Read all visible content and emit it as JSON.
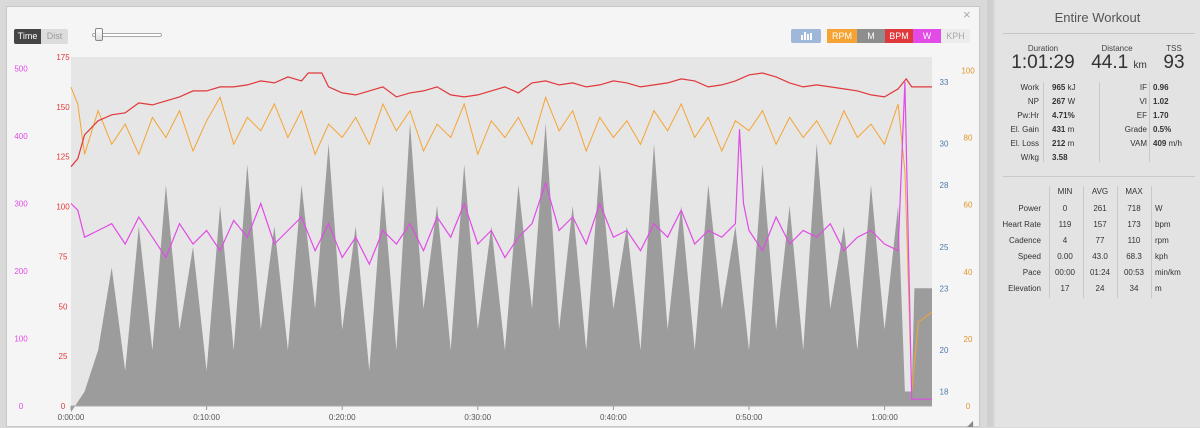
{
  "toolbar": {
    "time_label": "Time",
    "dist_label": "Dist",
    "close_label": "×",
    "series_buttons": [
      "RPM",
      "M",
      "BPM",
      "W",
      "KPH"
    ],
    "resize_glyph": "◢"
  },
  "colors": {
    "rpm": "#f5a433",
    "elevation": "#8e8e8e",
    "bpm": "#e0383b",
    "watts": "#e24be6",
    "kph_disabled": "#ececec",
    "speed_axis": "#4f79a7",
    "bars_button": "#9fb7d8"
  },
  "chart_data": {
    "type": "line",
    "x_ticks": [
      "0:00:00",
      "0:10:00",
      "0:20:00",
      "0:30:00",
      "0:40:00",
      "0:50:00",
      "1:00:00"
    ],
    "x_range_minutes": [
      0,
      63.5
    ],
    "axes": {
      "power": {
        "ticks": [
          "0",
          "100",
          "200",
          "300",
          "400",
          "500"
        ],
        "range": [
          0,
          517
        ]
      },
      "heart_rate": {
        "ticks": [
          "0",
          "25",
          "50",
          "75",
          "100",
          "125",
          "150",
          "175"
        ],
        "range": [
          0,
          175
        ]
      },
      "speed": {
        "ticks": [
          "18",
          "20",
          "23",
          "25",
          "28",
          "30",
          "33"
        ],
        "range": [
          17.3,
          34.2
        ]
      },
      "cadence": {
        "ticks": [
          "0",
          "20",
          "40",
          "60",
          "80",
          "100"
        ],
        "range": [
          0,
          104
        ]
      }
    },
    "series": [
      {
        "name": "BPM",
        "points": [
          [
            0,
            120
          ],
          [
            0.5,
            124
          ],
          [
            1,
            136
          ],
          [
            2,
            143
          ],
          [
            3,
            146
          ],
          [
            4,
            147
          ],
          [
            5,
            152
          ],
          [
            6,
            151
          ],
          [
            7,
            153
          ],
          [
            8,
            155
          ],
          [
            9,
            158
          ],
          [
            10,
            158
          ],
          [
            11,
            160
          ],
          [
            12,
            160
          ],
          [
            13,
            161
          ],
          [
            14,
            163
          ],
          [
            15,
            162
          ],
          [
            16,
            165
          ],
          [
            17,
            163
          ],
          [
            17.5,
            167
          ],
          [
            18.5,
            167
          ],
          [
            19,
            160
          ],
          [
            20,
            157
          ],
          [
            21,
            156
          ],
          [
            22,
            158
          ],
          [
            23,
            160
          ],
          [
            24,
            155
          ],
          [
            25,
            157
          ],
          [
            26,
            158
          ],
          [
            27,
            160
          ],
          [
            28,
            156
          ],
          [
            29,
            155
          ],
          [
            30,
            156
          ],
          [
            31,
            158
          ],
          [
            32,
            160
          ],
          [
            33,
            157
          ],
          [
            34,
            162
          ],
          [
            35,
            163
          ],
          [
            36,
            161
          ],
          [
            37,
            162
          ],
          [
            38,
            160
          ],
          [
            39,
            161
          ],
          [
            40,
            163
          ],
          [
            41,
            162
          ],
          [
            42,
            160
          ],
          [
            43,
            161
          ],
          [
            44,
            162
          ],
          [
            45,
            164
          ],
          [
            46,
            163
          ],
          [
            47,
            160
          ],
          [
            48,
            161
          ],
          [
            49,
            163
          ],
          [
            50,
            166
          ],
          [
            51,
            167
          ],
          [
            52,
            165
          ],
          [
            53,
            162
          ],
          [
            54,
            160
          ],
          [
            55,
            161
          ],
          [
            56,
            160
          ],
          [
            57,
            159
          ],
          [
            58,
            158
          ],
          [
            59,
            156
          ],
          [
            60,
            155
          ],
          [
            61,
            159
          ],
          [
            61.6,
            164
          ],
          [
            62,
            160
          ],
          [
            63.5,
            160
          ]
        ]
      },
      {
        "name": "W",
        "points": [
          [
            0,
            300
          ],
          [
            0.5,
            290
          ],
          [
            1,
            250
          ],
          [
            2,
            260
          ],
          [
            3,
            270
          ],
          [
            4,
            240
          ],
          [
            5,
            280
          ],
          [
            6,
            250
          ],
          [
            7,
            220
          ],
          [
            8,
            270
          ],
          [
            9,
            240
          ],
          [
            10,
            260
          ],
          [
            11,
            230
          ],
          [
            12,
            275
          ],
          [
            13,
            250
          ],
          [
            14,
            300
          ],
          [
            15,
            240
          ],
          [
            16,
            260
          ],
          [
            17,
            280
          ],
          [
            18,
            230
          ],
          [
            19,
            270
          ],
          [
            20,
            220
          ],
          [
            21,
            250
          ],
          [
            22,
            210
          ],
          [
            23,
            260
          ],
          [
            24,
            240
          ],
          [
            25,
            270
          ],
          [
            26,
            230
          ],
          [
            27,
            280
          ],
          [
            28,
            250
          ],
          [
            29,
            300
          ],
          [
            30,
            240
          ],
          [
            31,
            260
          ],
          [
            32,
            220
          ],
          [
            33,
            250
          ],
          [
            34,
            270
          ],
          [
            35,
            330
          ],
          [
            36,
            260
          ],
          [
            37,
            280
          ],
          [
            38,
            240
          ],
          [
            39,
            300
          ],
          [
            40,
            250
          ],
          [
            41,
            260
          ],
          [
            42,
            230
          ],
          [
            43,
            270
          ],
          [
            44,
            250
          ],
          [
            45,
            290
          ],
          [
            46,
            240
          ],
          [
            47,
            260
          ],
          [
            48,
            250
          ],
          [
            49,
            270
          ],
          [
            49.3,
            410
          ],
          [
            49.6,
            300
          ],
          [
            50,
            260
          ],
          [
            51,
            230
          ],
          [
            52,
            280
          ],
          [
            53,
            240
          ],
          [
            54,
            260
          ],
          [
            55,
            250
          ],
          [
            56,
            270
          ],
          [
            57,
            230
          ],
          [
            58,
            250
          ],
          [
            59,
            260
          ],
          [
            60,
            240
          ],
          [
            61,
            230
          ],
          [
            61.5,
            480
          ],
          [
            62,
            10
          ],
          [
            63.5,
            10
          ]
        ]
      },
      {
        "name": "RPM",
        "points": [
          [
            0,
            95
          ],
          [
            0.5,
            90
          ],
          [
            1,
            75
          ],
          [
            2,
            88
          ],
          [
            3,
            78
          ],
          [
            4,
            84
          ],
          [
            5,
            75
          ],
          [
            6,
            86
          ],
          [
            7,
            80
          ],
          [
            8,
            88
          ],
          [
            9,
            76
          ],
          [
            10,
            85
          ],
          [
            11,
            92
          ],
          [
            12,
            78
          ],
          [
            13,
            86
          ],
          [
            14,
            82
          ],
          [
            15,
            90
          ],
          [
            16,
            80
          ],
          [
            17,
            88
          ],
          [
            18,
            75
          ],
          [
            19,
            84
          ],
          [
            20,
            80
          ],
          [
            21,
            86
          ],
          [
            22,
            78
          ],
          [
            23,
            90
          ],
          [
            24,
            82
          ],
          [
            25,
            88
          ],
          [
            26,
            76
          ],
          [
            27,
            84
          ],
          [
            28,
            80
          ],
          [
            29,
            90
          ],
          [
            30,
            75
          ],
          [
            31,
            85
          ],
          [
            32,
            80
          ],
          [
            33,
            86
          ],
          [
            34,
            78
          ],
          [
            35,
            92
          ],
          [
            36,
            82
          ],
          [
            37,
            88
          ],
          [
            38,
            76
          ],
          [
            39,
            86
          ],
          [
            40,
            80
          ],
          [
            41,
            85
          ],
          [
            42,
            78
          ],
          [
            43,
            88
          ],
          [
            44,
            82
          ],
          [
            45,
            90
          ],
          [
            46,
            80
          ],
          [
            47,
            86
          ],
          [
            48,
            76
          ],
          [
            49,
            85
          ],
          [
            50,
            82
          ],
          [
            51,
            88
          ],
          [
            52,
            78
          ],
          [
            53,
            86
          ],
          [
            54,
            80
          ],
          [
            55,
            85
          ],
          [
            56,
            78
          ],
          [
            57,
            88
          ],
          [
            58,
            80
          ],
          [
            59,
            84
          ],
          [
            60,
            78
          ],
          [
            61,
            90
          ],
          [
            61.5,
            70
          ],
          [
            62,
            4
          ],
          [
            62.5,
            25
          ],
          [
            63.5,
            28
          ]
        ]
      },
      {
        "name": "M",
        "points": [
          [
            0,
            17
          ],
          [
            1,
            18
          ],
          [
            2,
            20
          ],
          [
            3,
            24
          ],
          [
            4,
            19
          ],
          [
            5,
            26
          ],
          [
            6,
            20
          ],
          [
            7,
            28
          ],
          [
            8,
            21
          ],
          [
            9,
            25
          ],
          [
            10,
            19
          ],
          [
            11,
            27
          ],
          [
            12,
            20
          ],
          [
            13,
            29
          ],
          [
            14,
            21
          ],
          [
            15,
            26
          ],
          [
            16,
            20
          ],
          [
            17,
            28
          ],
          [
            18,
            22
          ],
          [
            19,
            30
          ],
          [
            20,
            21
          ],
          [
            21,
            26
          ],
          [
            22,
            19
          ],
          [
            23,
            28
          ],
          [
            24,
            20
          ],
          [
            25,
            31
          ],
          [
            26,
            22
          ],
          [
            27,
            27
          ],
          [
            28,
            20
          ],
          [
            29,
            29
          ],
          [
            30,
            21
          ],
          [
            31,
            26
          ],
          [
            32,
            20
          ],
          [
            33,
            28
          ],
          [
            34,
            22
          ],
          [
            35,
            31
          ],
          [
            36,
            21
          ],
          [
            37,
            27
          ],
          [
            38,
            20
          ],
          [
            39,
            29
          ],
          [
            40,
            22
          ],
          [
            41,
            26
          ],
          [
            42,
            20
          ],
          [
            43,
            30
          ],
          [
            44,
            21
          ],
          [
            45,
            27
          ],
          [
            46,
            20
          ],
          [
            47,
            28
          ],
          [
            48,
            22
          ],
          [
            49,
            26
          ],
          [
            50,
            20
          ],
          [
            51,
            29
          ],
          [
            52,
            21
          ],
          [
            53,
            27
          ],
          [
            54,
            20
          ],
          [
            55,
            30
          ],
          [
            56,
            22
          ],
          [
            57,
            26
          ],
          [
            58,
            20
          ],
          [
            59,
            28
          ],
          [
            60,
            21
          ],
          [
            61,
            27
          ],
          [
            61.5,
            18
          ],
          [
            62,
            18
          ],
          [
            62.2,
            23
          ],
          [
            63.5,
            23
          ]
        ]
      }
    ]
  },
  "summary": {
    "title": "Entire Workout",
    "duration_label": "Duration",
    "duration": "1:01:29",
    "distance_label": "Distance",
    "distance": "44.1",
    "distance_unit": "km",
    "tss_label": "TSS",
    "tss": "93"
  },
  "metrics_left": [
    {
      "label": "Work",
      "value": "965",
      "unit": "kJ"
    },
    {
      "label": "NP",
      "value": "267",
      "unit": "W"
    },
    {
      "label": "Pw:Hr",
      "value": "4.71%",
      "unit": ""
    },
    {
      "label": "El. Gain",
      "value": "431",
      "unit": "m"
    },
    {
      "label": "El. Loss",
      "value": "212",
      "unit": "m"
    },
    {
      "label": "W/kg",
      "value": "3.58",
      "unit": ""
    }
  ],
  "metrics_right": [
    {
      "label": "IF",
      "value": "0.96",
      "unit": ""
    },
    {
      "label": "VI",
      "value": "1.02",
      "unit": ""
    },
    {
      "label": "EF",
      "value": "1.70",
      "unit": ""
    },
    {
      "label": "Grade",
      "value": "0.5%",
      "unit": ""
    },
    {
      "label": "VAM",
      "value": "409",
      "unit": "m/h"
    }
  ],
  "stats_table": {
    "headers": [
      "MIN",
      "AVG",
      "MAX"
    ],
    "rows": [
      {
        "label": "Power",
        "min": "0",
        "avg": "261",
        "max": "718",
        "unit": "W"
      },
      {
        "label": "Heart Rate",
        "min": "119",
        "avg": "157",
        "max": "173",
        "unit": "bpm"
      },
      {
        "label": "Cadence",
        "min": "4",
        "avg": "77",
        "max": "110",
        "unit": "rpm"
      },
      {
        "label": "Speed",
        "min": "0.00",
        "avg": "43.0",
        "max": "68.3",
        "unit": "kph"
      },
      {
        "label": "Pace",
        "min": "00:00",
        "avg": "01:24",
        "max": "00:53",
        "unit": "min/km"
      },
      {
        "label": "Elevation",
        "min": "17",
        "avg": "24",
        "max": "34",
        "unit": "m"
      }
    ]
  }
}
